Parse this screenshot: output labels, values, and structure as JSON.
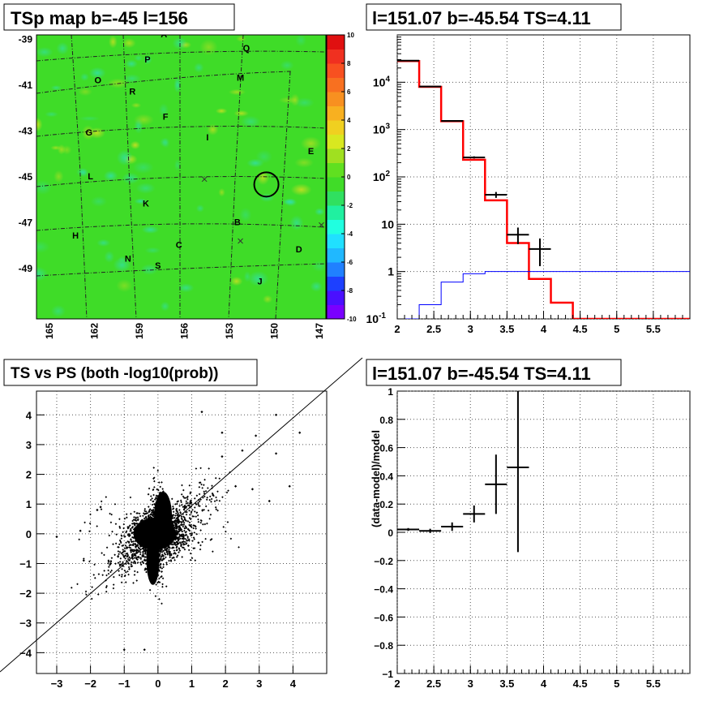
{
  "panels": {
    "skymap": {
      "title": "TSp map b=-45 l=156"
    },
    "spectrum": {
      "title": "l=151.07 b=-45.54 TS=4.11"
    },
    "tsps": {
      "title": "TS vs PS (both -log10(prob))"
    },
    "residual": {
      "title": "l=151.07 b=-45.54 TS=4.11",
      "ylabel": "(data-model)/model"
    }
  },
  "chart_data": [
    {
      "type": "heatmap",
      "title": "TSp map b=-45 l=156",
      "x_ticks": [
        "165",
        "162",
        "159",
        "156",
        "153",
        "150",
        "147"
      ],
      "y_ticks": [
        "-39",
        "-41",
        "-43",
        "-45",
        "-47",
        "-49"
      ],
      "xlim": [
        165.8,
        146.5
      ],
      "ylim": [
        -51.2,
        -38.8
      ],
      "colorbar": {
        "min": -10,
        "max": 10,
        "ticks": [
          "10",
          "8",
          "6",
          "4",
          "2",
          "0",
          "-2",
          "-4",
          "-6",
          "-8",
          "-10"
        ]
      },
      "regions": [
        {
          "label": "A",
          "l": 157.3,
          "b": -38.9
        },
        {
          "label": "Q",
          "l": 151.8,
          "b": -39.5
        },
        {
          "label": "P",
          "l": 158.4,
          "b": -40.0
        },
        {
          "label": "O",
          "l": 161.7,
          "b": -40.9
        },
        {
          "label": "M",
          "l": 152.2,
          "b": -40.8
        },
        {
          "label": "R",
          "l": 159.4,
          "b": -41.4
        },
        {
          "label": "F",
          "l": 157.2,
          "b": -42.5
        },
        {
          "label": "G",
          "l": 162.3,
          "b": -43.2
        },
        {
          "label": "I",
          "l": 154.4,
          "b": -43.4
        },
        {
          "label": "E",
          "l": 147.5,
          "b": -44.0
        },
        {
          "label": "L",
          "l": 162.2,
          "b": -45.1
        },
        {
          "label": "K",
          "l": 158.5,
          "b": -46.3
        },
        {
          "label": "B",
          "l": 152.4,
          "b": -47.1
        },
        {
          "label": "H",
          "l": 163.2,
          "b": -47.7
        },
        {
          "label": "C",
          "l": 156.3,
          "b": -48.1
        },
        {
          "label": "D",
          "l": 148.3,
          "b": -48.3
        },
        {
          "label": "N",
          "l": 159.7,
          "b": -48.7
        },
        {
          "label": "S",
          "l": 157.7,
          "b": -49.0
        },
        {
          "label": "J",
          "l": 150.9,
          "b": -49.7
        }
      ],
      "circle": {
        "l": 150.47,
        "b": -45.33
      },
      "crosses": [
        {
          "l": 154.6,
          "b": -45.1
        },
        {
          "l": 152.2,
          "b": -47.8
        },
        {
          "l": 146.8,
          "b": -47.1
        }
      ]
    },
    {
      "type": "line",
      "title": "l=151.07 b=-45.54 TS=4.11",
      "y_log": true,
      "xlim": [
        2.0,
        6.0
      ],
      "ylim": [
        0.1,
        100000
      ],
      "x_ticks": [
        "2",
        "2.5",
        "3",
        "3.5",
        "4",
        "4.5",
        "5",
        "5.5"
      ],
      "y_ticks": [
        "10^{-1}",
        "1",
        "10",
        "10^{2}",
        "10^{3}",
        "10^{4}"
      ],
      "bin_edges": [
        2.0,
        2.3,
        2.6,
        2.9,
        3.2,
        3.5,
        3.8,
        4.1,
        4.4,
        6.0
      ],
      "series": [
        {
          "color": "#ff0000",
          "values": [
            28000,
            8000,
            1500,
            230,
            32,
            4.0,
            0.7,
            0.22,
            0.1
          ]
        },
        {
          "color": "#0000ff",
          "values": [
            0.1,
            0.2,
            0.6,
            0.9,
            1.0,
            1.0,
            1.0,
            1.0,
            1.0
          ]
        }
      ],
      "data_points": [
        {
          "x": 2.15,
          "y": 28600,
          "xerr": 0.15,
          "ylo": 28400,
          "yhi": 28800
        },
        {
          "x": 2.45,
          "y": 8100,
          "xerr": 0.15,
          "ylo": 8000,
          "yhi": 8200
        },
        {
          "x": 2.75,
          "y": 1520,
          "xerr": 0.15,
          "ylo": 1490,
          "yhi": 1560
        },
        {
          "x": 3.05,
          "y": 258,
          "xerr": 0.15,
          "ylo": 245,
          "yhi": 272
        },
        {
          "x": 3.35,
          "y": 42,
          "xerr": 0.15,
          "ylo": 36,
          "yhi": 48
        },
        {
          "x": 3.65,
          "y": 6,
          "xerr": 0.15,
          "ylo": 3.8,
          "yhi": 8.5
        },
        {
          "x": 3.95,
          "y": 3,
          "xerr": 0.15,
          "ylo": 1.3,
          "yhi": 5.0
        }
      ]
    },
    {
      "type": "scatter",
      "title": "TS vs PS (both -log10(prob))",
      "xlim": [
        -3.6,
        5.0
      ],
      "ylim": [
        -4.7,
        4.8
      ],
      "x_ticks": [
        "-3",
        "-2",
        "-1",
        "0",
        "1",
        "2",
        "3",
        "4"
      ],
      "y_ticks": [
        "-4",
        "-3",
        "-2",
        "-1",
        "0",
        "1",
        "2",
        "3",
        "4"
      ],
      "diagonal": {
        "from": [
          -5,
          -5
        ],
        "to": [
          6,
          6
        ]
      },
      "outliers": [
        [
          4.2,
          3.4
        ],
        [
          3.5,
          4.0
        ],
        [
          3.5,
          2.7
        ],
        [
          3.9,
          1.6
        ],
        [
          2.5,
          2.8
        ],
        [
          2.9,
          3.3
        ],
        [
          1.9,
          2.6
        ],
        [
          2.3,
          1.6
        ],
        [
          1.3,
          4.1
        ],
        [
          1.9,
          3.4
        ],
        [
          -2.2,
          -0.9
        ],
        [
          -2.3,
          0.1
        ],
        [
          -1.8,
          0.8
        ],
        [
          -1.7,
          0.9
        ],
        [
          -1.0,
          -3.9
        ],
        [
          -0.4,
          -3.9
        ],
        [
          -3.0,
          -0.1
        ],
        [
          2.8,
          1.5
        ],
        [
          3.3,
          1.1
        ],
        [
          0.9,
          -0.4
        ],
        [
          1.2,
          -0.3
        ],
        [
          -1.4,
          -1.0
        ]
      ],
      "description_points": 2500
    },
    {
      "type": "scatter",
      "title": "l=151.07 b=-45.54 TS=4.11",
      "ylabel": "(data-model)/model",
      "xlim": [
        2.0,
        6.0
      ],
      "ylim": [
        -1.0,
        1.0
      ],
      "x_ticks": [
        "2",
        "2.5",
        "3",
        "3.5",
        "4",
        "4.5",
        "5",
        "5.5"
      ],
      "y_ticks": [
        "-1",
        "-0.8",
        "-0.6",
        "-0.4",
        "-0.2",
        "0",
        "0.2",
        "0.4",
        "0.6",
        "0.8",
        "1"
      ],
      "points": [
        {
          "x": 2.15,
          "y": 0.02,
          "xerr": 0.15,
          "yerr": 0.01
        },
        {
          "x": 2.45,
          "y": 0.01,
          "xerr": 0.15,
          "yerr": 0.015
        },
        {
          "x": 2.75,
          "y": 0.04,
          "xerr": 0.15,
          "yerr": 0.03
        },
        {
          "x": 3.05,
          "y": 0.13,
          "xerr": 0.15,
          "yerr": 0.06
        },
        {
          "x": 3.35,
          "y": 0.34,
          "xerr": 0.15,
          "yerr": 0.21
        },
        {
          "x": 3.65,
          "y": 0.46,
          "xerr": 0.15,
          "yerr": 0.6
        }
      ]
    }
  ]
}
